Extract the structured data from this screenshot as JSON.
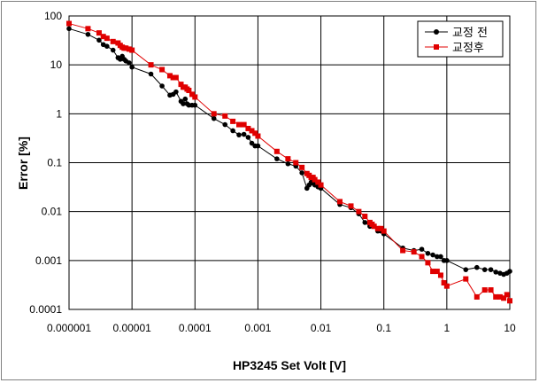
{
  "chart_data": {
    "type": "line",
    "xlabel": "HP3245 Set Volt [V]",
    "ylabel": "Error [%]",
    "xscale": "log",
    "yscale": "log",
    "xlim": [
      1e-06,
      10
    ],
    "ylim": [
      0.0001,
      100
    ],
    "grid": true,
    "legend_position": "top-right",
    "x_tick_labels": [
      "0.000001",
      "0.00001",
      "0.0001",
      "0.001",
      "0.01",
      "0.1",
      "1",
      "10"
    ],
    "y_tick_labels": [
      "100",
      "10",
      "1",
      "0.1",
      "0.01",
      "0.001",
      "0.0001"
    ],
    "series": [
      {
        "name": "교정 전",
        "color": "#000000",
        "marker": "circle",
        "x": [
          1e-06,
          2e-06,
          3e-06,
          3.5e-06,
          4e-06,
          5e-06,
          6e-06,
          6.5e-06,
          7e-06,
          7.5e-06,
          8e-06,
          9e-06,
          1e-05,
          2e-05,
          3e-05,
          4e-05,
          4.5e-05,
          5e-05,
          6e-05,
          6.5e-05,
          7e-05,
          7.5e-05,
          8e-05,
          9e-05,
          0.0001,
          0.0002,
          0.0003,
          0.0004,
          0.0005,
          0.0006,
          0.0007,
          0.0008,
          0.0009,
          0.001,
          0.002,
          0.003,
          0.004,
          0.005,
          0.006,
          0.0065,
          0.007,
          0.0075,
          0.008,
          0.009,
          0.01,
          0.02,
          0.03,
          0.04,
          0.05,
          0.06,
          0.065,
          0.07,
          0.08,
          0.09,
          0.1,
          0.2,
          0.3,
          0.4,
          0.5,
          0.6,
          0.7,
          0.8,
          0.9,
          1,
          2,
          3,
          4,
          5,
          6,
          7,
          8,
          9,
          10
        ],
        "y": [
          55,
          42,
          32,
          26,
          24,
          20,
          14,
          13,
          15,
          13,
          12,
          11,
          9,
          6.5,
          3.7,
          2.4,
          2.5,
          2.8,
          1.8,
          1.6,
          2,
          1.6,
          1.5,
          1.5,
          1.5,
          0.8,
          0.6,
          0.45,
          0.37,
          0.38,
          0.33,
          0.25,
          0.22,
          0.22,
          0.12,
          0.095,
          0.085,
          0.062,
          0.03,
          0.035,
          0.04,
          0.038,
          0.035,
          0.032,
          0.03,
          0.014,
          0.012,
          0.009,
          0.006,
          0.005,
          0.0055,
          0.005,
          0.004,
          0.004,
          0.0035,
          0.0018,
          0.0016,
          0.0017,
          0.0014,
          0.0013,
          0.0012,
          0.0012,
          0.001,
          0.001,
          0.00065,
          0.00072,
          0.00065,
          0.00065,
          0.00058,
          0.00055,
          0.00052,
          0.00055,
          0.0006
        ]
      },
      {
        "name": "교정후",
        "color": "#e00000",
        "marker": "square",
        "x": [
          1e-06,
          2e-06,
          3e-06,
          3.5e-06,
          4e-06,
          5e-06,
          6e-06,
          6.5e-06,
          7e-06,
          7.5e-06,
          8e-06,
          9e-06,
          1e-05,
          2e-05,
          3e-05,
          4e-05,
          4.5e-05,
          5e-05,
          6e-05,
          6.5e-05,
          7e-05,
          7.5e-05,
          8e-05,
          9e-05,
          0.0001,
          0.0002,
          0.0003,
          0.0004,
          0.0005,
          0.0006,
          0.0007,
          0.0008,
          0.0009,
          0.001,
          0.002,
          0.003,
          0.004,
          0.005,
          0.006,
          0.0065,
          0.007,
          0.0075,
          0.008,
          0.009,
          0.01,
          0.02,
          0.03,
          0.04,
          0.05,
          0.06,
          0.065,
          0.07,
          0.08,
          0.09,
          0.1,
          0.2,
          0.3,
          0.4,
          0.5,
          0.6,
          0.7,
          0.8,
          0.9,
          1,
          2,
          3,
          4,
          5,
          6,
          7,
          8,
          9,
          10
        ],
        "y": [
          70,
          55,
          45,
          38,
          35,
          30,
          28,
          25,
          23,
          22,
          22,
          21,
          20,
          10,
          8,
          6,
          5.5,
          5.5,
          4,
          3.5,
          3.5,
          3.2,
          3,
          2.5,
          2.2,
          1,
          0.9,
          0.7,
          0.6,
          0.6,
          0.5,
          0.45,
          0.4,
          0.35,
          0.17,
          0.12,
          0.1,
          0.08,
          0.06,
          0.055,
          0.05,
          0.05,
          0.045,
          0.04,
          0.035,
          0.016,
          0.013,
          0.01,
          0.008,
          0.006,
          0.0055,
          0.005,
          0.0045,
          0.0045,
          0.004,
          0.0016,
          0.0015,
          0.0012,
          0.0009,
          0.0006,
          0.0006,
          0.0005,
          0.00035,
          0.0003,
          0.00042,
          0.00018,
          0.00025,
          0.00025,
          0.00018,
          0.00018,
          0.00017,
          0.0002,
          0.00015
        ]
      }
    ]
  }
}
